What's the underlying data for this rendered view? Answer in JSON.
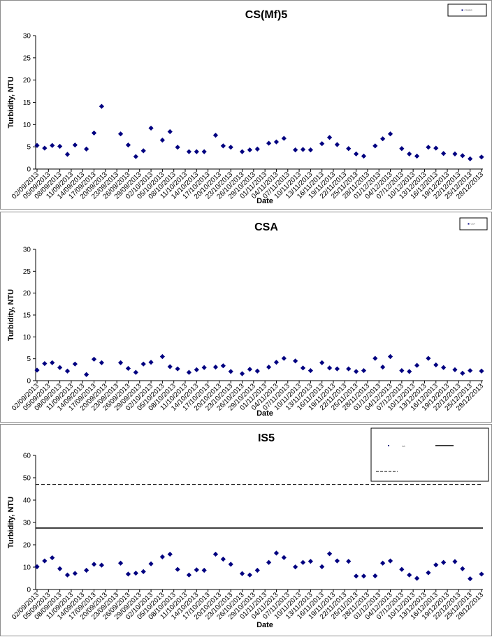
{
  "chart_data": [
    {
      "type": "scatter",
      "title": "CS(Mf)5",
      "xlabel": "Date",
      "ylabel": "Turbidity, NTU",
      "ylim": [
        0,
        30
      ],
      "yticks": [
        0,
        5,
        10,
        15,
        20,
        25,
        30
      ],
      "grid": false,
      "legend": {
        "position": "top-right",
        "entries": [
          "CS(Mf)5"
        ]
      },
      "x_tick_labels": [
        "02/09/2013",
        "05/09/2013",
        "08/09/2013",
        "11/09/2013",
        "14/09/2013",
        "17/09/2013",
        "20/09/2013",
        "23/09/2013",
        "26/09/2013",
        "29/09/2013",
        "02/10/2013",
        "05/10/2013",
        "08/10/2013",
        "11/10/2013",
        "14/10/2013",
        "17/10/2013",
        "20/10/2013",
        "23/10/2013",
        "26/10/2013",
        "29/10/2013",
        "01/11/2013",
        "04/11/2013",
        "07/11/2013",
        "10/11/2013",
        "13/11/2013",
        "16/11/2013",
        "19/11/2013",
        "22/11/2013",
        "25/11/2013",
        "28/11/2013",
        "01/12/2013",
        "04/12/2013",
        "07/12/2013",
        "10/12/2013",
        "13/12/2013",
        "16/12/2013",
        "19/12/2013",
        "22/12/2013",
        "25/12/2013",
        "28/12/2013"
      ],
      "series": [
        {
          "name": "CS(Mf)5",
          "color": "#000080",
          "points": [
            [
              "02/09/2013",
              5.3
            ],
            [
              "04/09/2013",
              4.7
            ],
            [
              "06/09/2013",
              5.3
            ],
            [
              "08/09/2013",
              5.1
            ],
            [
              "10/09/2013",
              3.3
            ],
            [
              "12/09/2013",
              5.4
            ],
            [
              "15/09/2013",
              4.5
            ],
            [
              "17/09/2013",
              8.1
            ],
            [
              "19/09/2013",
              14.1
            ],
            [
              "24/09/2013",
              7.9
            ],
            [
              "26/09/2013",
              5.4
            ],
            [
              "28/09/2013",
              2.8
            ],
            [
              "30/09/2013",
              4.1
            ],
            [
              "02/10/2013",
              9.2
            ],
            [
              "05/10/2013",
              6.5
            ],
            [
              "07/10/2013",
              8.4
            ],
            [
              "09/10/2013",
              4.9
            ],
            [
              "12/10/2013",
              3.9
            ],
            [
              "14/10/2013",
              3.9
            ],
            [
              "16/10/2013",
              3.9
            ],
            [
              "19/10/2013",
              7.6
            ],
            [
              "21/10/2013",
              5.2
            ],
            [
              "23/10/2013",
              4.9
            ],
            [
              "26/10/2013",
              3.9
            ],
            [
              "28/10/2013",
              4.3
            ],
            [
              "30/10/2013",
              4.5
            ],
            [
              "02/11/2013",
              5.8
            ],
            [
              "04/11/2013",
              6.1
            ],
            [
              "06/11/2013",
              6.9
            ],
            [
              "09/11/2013",
              4.3
            ],
            [
              "11/11/2013",
              4.4
            ],
            [
              "13/11/2013",
              4.3
            ],
            [
              "16/11/2013",
              5.7
            ],
            [
              "18/11/2013",
              7.1
            ],
            [
              "20/11/2013",
              5.5
            ],
            [
              "23/11/2013",
              4.6
            ],
            [
              "25/11/2013",
              3.4
            ],
            [
              "27/11/2013",
              2.9
            ],
            [
              "30/11/2013",
              5.2
            ],
            [
              "02/12/2013",
              6.8
            ],
            [
              "04/12/2013",
              7.9
            ],
            [
              "07/12/2013",
              4.6
            ],
            [
              "09/12/2013",
              3.4
            ],
            [
              "11/12/2013",
              2.9
            ],
            [
              "14/12/2013",
              4.9
            ],
            [
              "16/12/2013",
              4.7
            ],
            [
              "18/12/2013",
              3.5
            ],
            [
              "21/12/2013",
              3.4
            ],
            [
              "23/12/2013",
              3.0
            ],
            [
              "25/12/2013",
              2.3
            ],
            [
              "28/12/2013",
              2.7
            ]
          ]
        }
      ]
    },
    {
      "type": "scatter",
      "title": "CSA",
      "xlabel": "Date",
      "ylabel": "Turbidity, NTU",
      "ylim": [
        0,
        30
      ],
      "yticks": [
        0,
        5,
        10,
        15,
        20,
        25,
        30
      ],
      "grid": false,
      "legend": {
        "position": "top-right",
        "entries": [
          "CSA"
        ]
      },
      "x_tick_labels": [
        "02/09/2013",
        "05/09/2013",
        "08/09/2013",
        "11/09/2013",
        "14/09/2013",
        "17/09/2013",
        "20/09/2013",
        "23/09/2013",
        "26/09/2013",
        "29/09/2013",
        "02/10/2013",
        "05/10/2013",
        "08/10/2013",
        "11/10/2013",
        "14/10/2013",
        "17/10/2013",
        "20/10/2013",
        "23/10/2013",
        "26/10/2013",
        "29/10/2013",
        "01/11/2013",
        "04/11/2013",
        "07/11/2013",
        "10/11/2013",
        "13/11/2013",
        "16/11/2013",
        "19/11/2013",
        "22/11/2013",
        "25/11/2013",
        "28/11/2013",
        "01/12/2013",
        "04/12/2013",
        "07/12/2013",
        "10/12/2013",
        "13/12/2013",
        "16/12/2013",
        "19/12/2013",
        "22/12/2013",
        "25/12/2013",
        "28/12/2013"
      ],
      "series": [
        {
          "name": "CSA",
          "color": "#000080",
          "points": [
            [
              "02/09/2013",
              2.4
            ],
            [
              "04/09/2013",
              3.9
            ],
            [
              "06/09/2013",
              4.1
            ],
            [
              "08/09/2013",
              3.0
            ],
            [
              "10/09/2013",
              2.2
            ],
            [
              "12/09/2013",
              3.8
            ],
            [
              "15/09/2013",
              1.4
            ],
            [
              "17/09/2013",
              4.9
            ],
            [
              "19/09/2013",
              4.1
            ],
            [
              "24/09/2013",
              4.1
            ],
            [
              "26/09/2013",
              2.8
            ],
            [
              "28/09/2013",
              1.9
            ],
            [
              "30/09/2013",
              3.8
            ],
            [
              "02/10/2013",
              4.2
            ],
            [
              "05/10/2013",
              5.5
            ],
            [
              "07/10/2013",
              3.2
            ],
            [
              "09/10/2013",
              2.7
            ],
            [
              "12/10/2013",
              1.9
            ],
            [
              "14/10/2013",
              2.5
            ],
            [
              "16/10/2013",
              3.0
            ],
            [
              "19/10/2013",
              3.1
            ],
            [
              "21/10/2013",
              3.4
            ],
            [
              "23/10/2013",
              2.1
            ],
            [
              "26/10/2013",
              1.6
            ],
            [
              "28/10/2013",
              2.6
            ],
            [
              "30/10/2013",
              2.2
            ],
            [
              "02/11/2013",
              3.1
            ],
            [
              "04/11/2013",
              4.2
            ],
            [
              "06/11/2013",
              5.1
            ],
            [
              "09/11/2013",
              4.5
            ],
            [
              "11/11/2013",
              2.9
            ],
            [
              "13/11/2013",
              2.3
            ],
            [
              "16/11/2013",
              4.1
            ],
            [
              "18/11/2013",
              2.9
            ],
            [
              "20/11/2013",
              2.7
            ],
            [
              "23/11/2013",
              2.7
            ],
            [
              "25/11/2013",
              2.1
            ],
            [
              "27/11/2013",
              2.3
            ],
            [
              "30/11/2013",
              5.1
            ],
            [
              "02/12/2013",
              3.1
            ],
            [
              "04/12/2013",
              5.5
            ],
            [
              "07/12/2013",
              2.3
            ],
            [
              "09/12/2013",
              2.1
            ],
            [
              "11/12/2013",
              3.5
            ],
            [
              "14/12/2013",
              5.1
            ],
            [
              "16/12/2013",
              3.6
            ],
            [
              "18/12/2013",
              3.0
            ],
            [
              "21/12/2013",
              2.5
            ],
            [
              "23/12/2013",
              1.7
            ],
            [
              "25/12/2013",
              2.3
            ],
            [
              "28/12/2013",
              2.2
            ]
          ]
        }
      ]
    },
    {
      "type": "scatter",
      "title": "IS5",
      "xlabel": "Date",
      "ylabel": "Turbidity, NTU",
      "ylim": [
        0,
        60
      ],
      "yticks": [
        0,
        10,
        20,
        30,
        40,
        50,
        60
      ],
      "grid": false,
      "legend": {
        "position": "top-right",
        "entries": [
          "IS5",
          "",
          ""
        ]
      },
      "x_tick_labels": [
        "02/09/2013",
        "05/09/2013",
        "08/09/2013",
        "11/09/2013",
        "14/09/2013",
        "17/09/2013",
        "20/09/2013",
        "23/09/2013",
        "26/09/2013",
        "29/09/2013",
        "02/10/2013",
        "05/10/2013",
        "08/10/2013",
        "11/10/2013",
        "14/10/2013",
        "17/10/2013",
        "20/10/2013",
        "23/10/2013",
        "26/10/2013",
        "29/10/2013",
        "01/11/2013",
        "04/11/2013",
        "07/11/2013",
        "10/11/2013",
        "13/11/2013",
        "16/11/2013",
        "19/11/2013",
        "22/11/2013",
        "25/11/2013",
        "28/11/2013",
        "01/12/2013",
        "04/12/2013",
        "07/12/2013",
        "10/12/2013",
        "13/12/2013",
        "16/12/2013",
        "19/12/2013",
        "22/12/2013",
        "25/12/2013",
        "28/12/2013"
      ],
      "reference_lines": [
        {
          "style": "solid",
          "y": 27.5
        },
        {
          "style": "dashed",
          "y": 47
        }
      ],
      "series": [
        {
          "name": "IS5",
          "color": "#000080",
          "points": [
            [
              "02/09/2013",
              10.2
            ],
            [
              "04/09/2013",
              12.8
            ],
            [
              "06/09/2013",
              14.2
            ],
            [
              "08/09/2013",
              9.3
            ],
            [
              "10/09/2013",
              6.5
            ],
            [
              "12/09/2013",
              7.2
            ],
            [
              "15/09/2013",
              8.6
            ],
            [
              "17/09/2013",
              11.3
            ],
            [
              "19/09/2013",
              10.9
            ],
            [
              "24/09/2013",
              11.8
            ],
            [
              "26/09/2013",
              6.9
            ],
            [
              "28/09/2013",
              7.3
            ],
            [
              "30/09/2013",
              8.0
            ],
            [
              "02/10/2013",
              11.5
            ],
            [
              "05/10/2013",
              14.6
            ],
            [
              "07/10/2013",
              15.8
            ],
            [
              "09/10/2013",
              9.0
            ],
            [
              "12/10/2013",
              6.5
            ],
            [
              "14/10/2013",
              8.8
            ],
            [
              "16/10/2013",
              8.6
            ],
            [
              "19/10/2013",
              15.8
            ],
            [
              "21/10/2013",
              13.6
            ],
            [
              "23/10/2013",
              11.3
            ],
            [
              "26/10/2013",
              7.1
            ],
            [
              "28/10/2013",
              6.5
            ],
            [
              "30/10/2013",
              8.6
            ],
            [
              "02/11/2013",
              12.1
            ],
            [
              "04/11/2013",
              16.3
            ],
            [
              "06/11/2013",
              14.3
            ],
            [
              "09/11/2013",
              10.1
            ],
            [
              "11/11/2013",
              12.1
            ],
            [
              "13/11/2013",
              12.6
            ],
            [
              "16/11/2013",
              10.2
            ],
            [
              "18/11/2013",
              16.0
            ],
            [
              "20/11/2013",
              12.8
            ],
            [
              "23/11/2013",
              12.6
            ],
            [
              "25/11/2013",
              6.0
            ],
            [
              "27/11/2013",
              6.0
            ],
            [
              "30/11/2013",
              6.1
            ],
            [
              "02/12/2013",
              11.8
            ],
            [
              "04/12/2013",
              12.8
            ],
            [
              "07/12/2013",
              9.0
            ],
            [
              "09/12/2013",
              6.5
            ],
            [
              "11/12/2013",
              5.0
            ],
            [
              "14/12/2013",
              7.5
            ],
            [
              "16/12/2013",
              11.0
            ],
            [
              "18/12/2013",
              12.1
            ],
            [
              "21/12/2013",
              12.5
            ],
            [
              "23/12/2013",
              9.3
            ],
            [
              "25/12/2013",
              4.8
            ],
            [
              "28/12/2013",
              6.9
            ]
          ]
        }
      ]
    }
  ]
}
